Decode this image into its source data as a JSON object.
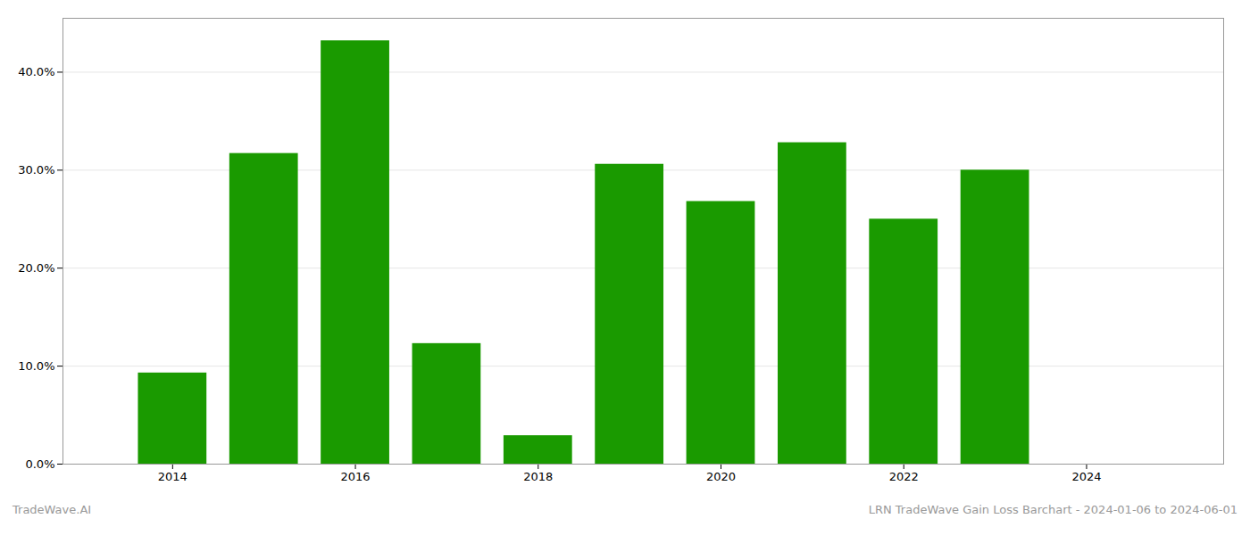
{
  "chart_data": {
    "type": "bar",
    "title": "LRN TradeWave Gain Loss Barchart - 2024-01-06 to 2024-06-01",
    "annotations": [
      "TradeWave.AI"
    ],
    "x": [
      2014,
      2015,
      2016,
      2017,
      2018,
      2019,
      2020,
      2021,
      2022,
      2023
    ],
    "values": [
      0.093,
      0.317,
      0.432,
      0.123,
      0.029,
      0.306,
      0.268,
      0.328,
      0.25,
      0.3
    ],
    "color": "#1a9a00",
    "xlim": [
      2012.8,
      2025.5
    ],
    "xticks": [
      2014,
      2016,
      2018,
      2020,
      2022,
      2024
    ],
    "ylim": [
      0,
      0.455
    ],
    "yticks": [
      {
        "value": 0.0,
        "label": "0.0%"
      },
      {
        "value": 0.1,
        "label": "10.0%"
      },
      {
        "value": 0.2,
        "label": "20.0%"
      },
      {
        "value": 0.3,
        "label": "30.0%"
      },
      {
        "value": 0.4,
        "label": "40.0%"
      }
    ],
    "grid": true
  }
}
